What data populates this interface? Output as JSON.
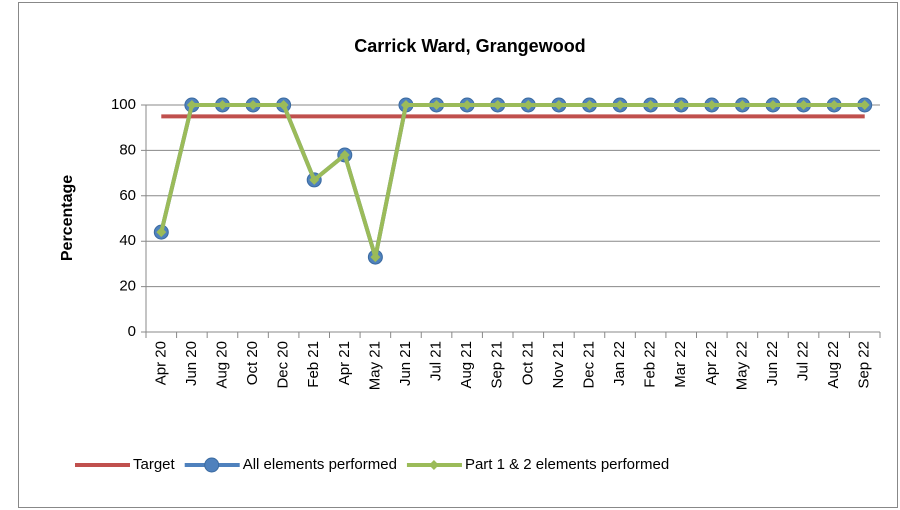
{
  "chart_data": {
    "type": "line",
    "title": "Carrick Ward, Grangewood",
    "y_label": "Percentage",
    "categories": [
      "Apr 20",
      "Jun 20",
      "Aug 20",
      "Oct 20",
      "Dec 20",
      "Feb 21",
      "Apr 21",
      "May 21",
      "Jun 21",
      "Jul 21",
      "Aug 21",
      "Sep 21",
      "Oct 21",
      "Nov 21",
      "Dec 21",
      "Jan 22",
      "Feb 22",
      "Mar 22",
      "Apr 22",
      "May 22",
      "Jun 22",
      "Jul 22",
      "Aug 22",
      "Sep 22"
    ],
    "series": [
      {
        "name": "Target",
        "color": "#c0504d",
        "marker": "none",
        "values": [
          95,
          95,
          95,
          95,
          95,
          95,
          95,
          95,
          95,
          95,
          95,
          95,
          95,
          95,
          95,
          95,
          95,
          95,
          95,
          95,
          95,
          95,
          95,
          95
        ]
      },
      {
        "name": "All elements performed",
        "color": "#4f81bd",
        "marker": "circle",
        "values": [
          44,
          100,
          100,
          100,
          100,
          67,
          78,
          33,
          100,
          100,
          100,
          100,
          100,
          100,
          100,
          100,
          100,
          100,
          100,
          100,
          100,
          100,
          100,
          100
        ]
      },
      {
        "name": "Part 1 & 2 elements performed",
        "color": "#9bbb59",
        "marker": "diamond",
        "values": [
          44,
          100,
          100,
          100,
          100,
          67,
          78,
          33,
          100,
          100,
          100,
          100,
          100,
          100,
          100,
          100,
          100,
          100,
          100,
          100,
          100,
          100,
          100,
          100
        ]
      }
    ],
    "ylim": [
      0,
      100
    ],
    "yticks": [
      0,
      20,
      40,
      60,
      80,
      100
    ],
    "grid": true,
    "legend": "bottom"
  }
}
